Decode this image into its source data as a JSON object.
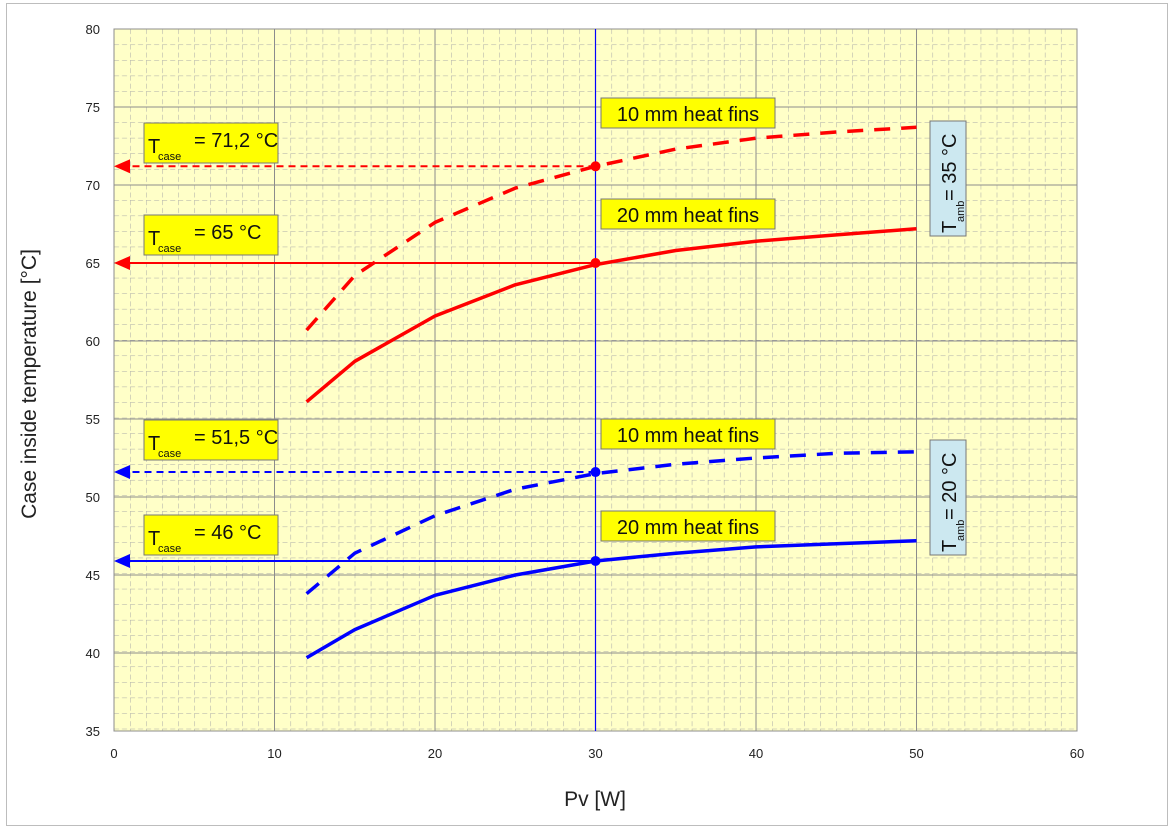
{
  "chart_data": {
    "type": "line",
    "xlabel": "Pv [W]",
    "ylabel": "Case inside temperature [°C]",
    "xlim": [
      0,
      60
    ],
    "ylim": [
      35,
      80
    ],
    "xticks": [
      "0",
      "10",
      "20",
      "30",
      "40",
      "50",
      "60"
    ],
    "yticks": [
      "35",
      "40",
      "45",
      "50",
      "55",
      "60",
      "65",
      "70",
      "75",
      "80"
    ],
    "grid": true,
    "colors": {
      "red": "#ff0000",
      "blue": "#0000ff",
      "label_bg": "#ffff00",
      "amb_bg": "#cce8f0",
      "plot_bg": "#ffffc8"
    },
    "series": [
      {
        "color": "#ff0000",
        "style": "dashed",
        "x": [
          12,
          15,
          20,
          25,
          30,
          35,
          40,
          45,
          50
        ],
        "y": [
          60.7,
          64.2,
          67.6,
          69.8,
          71.2,
          72.3,
          73.0,
          73.4,
          73.7
        ]
      },
      {
        "color": "#ff0000",
        "style": "solid",
        "x": [
          12,
          15,
          20,
          25,
          30,
          35,
          40,
          45,
          50
        ],
        "y": [
          56.1,
          58.7,
          61.6,
          63.6,
          64.9,
          65.8,
          66.4,
          66.8,
          67.2
        ]
      },
      {
        "color": "#0000ff",
        "style": "dashed",
        "x": [
          12,
          15,
          20,
          25,
          30,
          35,
          40,
          45,
          50
        ],
        "y": [
          43.8,
          46.4,
          48.8,
          50.5,
          51.5,
          52.1,
          52.5,
          52.8,
          52.9
        ]
      },
      {
        "color": "#0000ff",
        "style": "solid",
        "x": [
          12,
          15,
          20,
          25,
          30,
          35,
          40,
          45,
          50
        ],
        "y": [
          39.7,
          41.5,
          43.7,
          45.0,
          45.9,
          46.4,
          46.8,
          47.0,
          47.2
        ]
      }
    ],
    "markers": [
      {
        "x": 30,
        "y": 71.2,
        "color": "#ff0000",
        "style": "dashed"
      },
      {
        "x": 30,
        "y": 65.0,
        "color": "#ff0000",
        "style": "solid"
      },
      {
        "x": 30,
        "y": 51.6,
        "color": "#0000ff",
        "style": "dashed"
      },
      {
        "x": 30,
        "y": 45.9,
        "color": "#0000ff",
        "style": "solid"
      }
    ],
    "vline": {
      "x": 30,
      "color": "#0000ff"
    },
    "annotations": {
      "tcase": [
        {
          "main": "T",
          "sub": "case",
          "rest": "= 71,2 °C"
        },
        {
          "main": "T",
          "sub": "case",
          "rest": "= 65 °C"
        },
        {
          "main": "T",
          "sub": "case",
          "rest": "= 51,5 °C"
        },
        {
          "main": "T",
          "sub": "case",
          "rest": "= 46 °C"
        }
      ],
      "fins": [
        "10 mm heat fins",
        "20 mm heat fins",
        "10 mm heat fins",
        "20 mm heat fins"
      ],
      "tamb": [
        {
          "main": "T",
          "sub": "amb",
          "rest": "= 35 °C"
        },
        {
          "main": "T",
          "sub": "amb",
          "rest": "= 20 °C"
        }
      ]
    }
  }
}
